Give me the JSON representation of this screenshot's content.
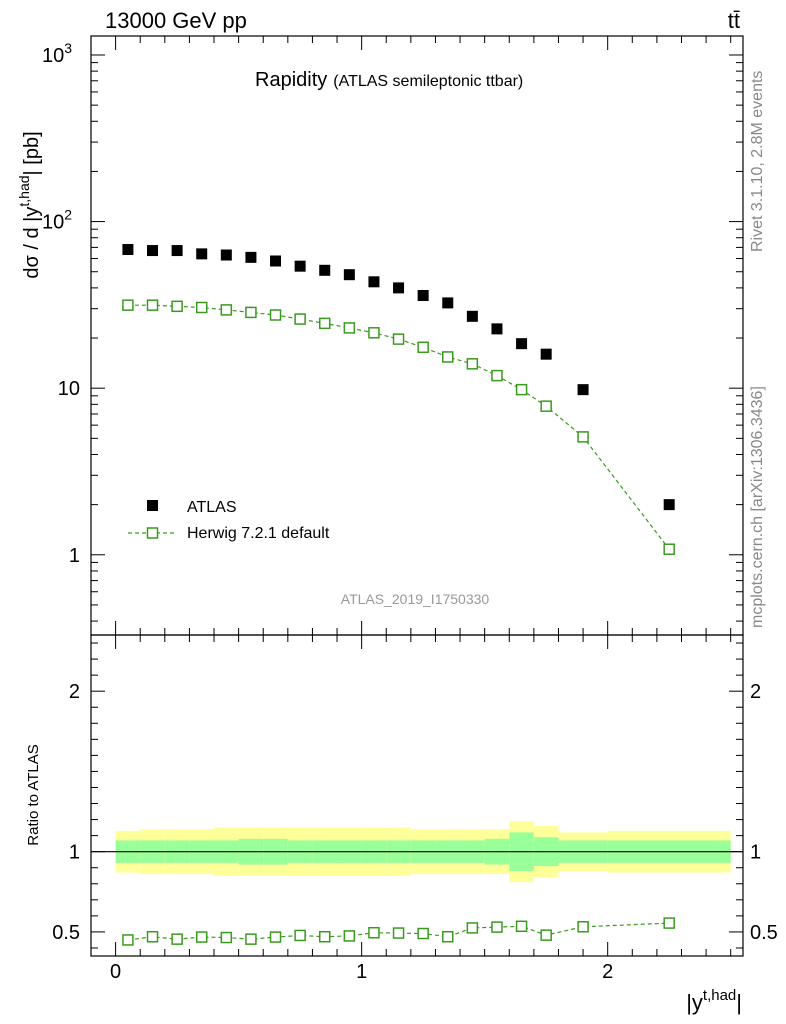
{
  "header": {
    "energy_label": "13000 GeV pp",
    "process_label": "tt̄"
  },
  "side_labels": {
    "rivet": "Rivet 3.1.10,  2.8M events",
    "mcplots": "mcplots.cern.ch [arXiv:1306.3436]"
  },
  "chart_data": [
    {
      "type": "scatter",
      "panel": "main",
      "title": "Rapidity",
      "subtitle": "(ATLAS semileptonic ttbar)",
      "analysis_id": "ATLAS_2019_I1750330",
      "ylabel": "dσ / d |y^{t,had}| [pb]",
      "ylabel_parts": {
        "prefix": "dσ / d |y",
        "sup": "t,had",
        "suffix": "| [pb]"
      },
      "yscale": "log",
      "xlim": [
        -0.1,
        2.55
      ],
      "ylim": [
        0.33,
        1300
      ],
      "ytick_labels": [
        {
          "value": 1,
          "label": "1"
        },
        {
          "value": 10,
          "label": "10"
        },
        {
          "value": 100,
          "base": "10",
          "exp": "2"
        },
        {
          "value": 1000,
          "base": "10",
          "exp": "3"
        }
      ],
      "legend_position": "bottom-left",
      "series": [
        {
          "name": "ATLAS",
          "marker": "filled-square",
          "color": "#000000",
          "x": [
            0.05,
            0.15,
            0.25,
            0.35,
            0.45,
            0.55,
            0.65,
            0.75,
            0.85,
            0.95,
            1.05,
            1.15,
            1.25,
            1.35,
            1.45,
            1.55,
            1.65,
            1.75,
            1.9,
            2.25
          ],
          "y": [
            68,
            67,
            67,
            64,
            63,
            61,
            58,
            54,
            51,
            48,
            43.5,
            40,
            36,
            32.5,
            27,
            22.7,
            18.5,
            16,
            9.8,
            2.0
          ]
        },
        {
          "name": "Herwig 7.2.1 default",
          "marker": "open-square",
          "line": "dashed",
          "color": "#3a9a1f",
          "x": [
            0.05,
            0.15,
            0.25,
            0.35,
            0.45,
            0.55,
            0.65,
            0.75,
            0.85,
            0.95,
            1.05,
            1.15,
            1.25,
            1.35,
            1.45,
            1.55,
            1.65,
            1.75,
            1.9,
            2.25
          ],
          "y": [
            31.5,
            31.5,
            31,
            30.5,
            29.5,
            28.5,
            27.5,
            26,
            24.5,
            23,
            21.5,
            19.7,
            17.6,
            15.4,
            14,
            11.9,
            9.8,
            7.8,
            5.1,
            1.08
          ]
        }
      ]
    },
    {
      "type": "scatter",
      "panel": "ratio",
      "ylabel": "Ratio to ATLAS",
      "xlabel": "|y^{t,had}|",
      "xlabel_parts": {
        "prefix": "|y",
        "sup": "t,had",
        "suffix": "|"
      },
      "xlim": [
        -0.1,
        2.55
      ],
      "ylim": [
        0.35,
        2.35
      ],
      "x_ticks": [
        0,
        1,
        2
      ],
      "x_tick_labels": [
        "0",
        "1",
        "2"
      ],
      "y_ticks": [
        0.5,
        1,
        2
      ],
      "y_tick_labels": [
        "0.5",
        "1",
        "2"
      ],
      "reference_line": 1.0,
      "bins": [
        {
          "lo": 0.0,
          "hi": 0.1,
          "stat": 0.07,
          "tot": 0.13
        },
        {
          "lo": 0.1,
          "hi": 0.2,
          "stat": 0.07,
          "tot": 0.14
        },
        {
          "lo": 0.2,
          "hi": 0.3,
          "stat": 0.07,
          "tot": 0.14
        },
        {
          "lo": 0.3,
          "hi": 0.4,
          "stat": 0.07,
          "tot": 0.14
        },
        {
          "lo": 0.4,
          "hi": 0.5,
          "stat": 0.07,
          "tot": 0.15
        },
        {
          "lo": 0.5,
          "hi": 0.6,
          "stat": 0.08,
          "tot": 0.15
        },
        {
          "lo": 0.6,
          "hi": 0.7,
          "stat": 0.08,
          "tot": 0.15
        },
        {
          "lo": 0.7,
          "hi": 0.8,
          "stat": 0.07,
          "tot": 0.15
        },
        {
          "lo": 0.8,
          "hi": 0.9,
          "stat": 0.07,
          "tot": 0.15
        },
        {
          "lo": 0.9,
          "hi": 1.0,
          "stat": 0.07,
          "tot": 0.15
        },
        {
          "lo": 1.0,
          "hi": 1.1,
          "stat": 0.07,
          "tot": 0.15
        },
        {
          "lo": 1.1,
          "hi": 1.2,
          "stat": 0.07,
          "tot": 0.15
        },
        {
          "lo": 1.2,
          "hi": 1.3,
          "stat": 0.07,
          "tot": 0.14
        },
        {
          "lo": 1.3,
          "hi": 1.4,
          "stat": 0.07,
          "tot": 0.14
        },
        {
          "lo": 1.4,
          "hi": 1.5,
          "stat": 0.07,
          "tot": 0.14
        },
        {
          "lo": 1.5,
          "hi": 1.6,
          "stat": 0.08,
          "tot": 0.14
        },
        {
          "lo": 1.6,
          "hi": 1.7,
          "stat": 0.12,
          "tot": 0.19
        },
        {
          "lo": 1.7,
          "hi": 1.8,
          "stat": 0.09,
          "tot": 0.16
        },
        {
          "lo": 1.8,
          "hi": 2.0,
          "stat": 0.07,
          "tot": 0.12
        },
        {
          "lo": 2.0,
          "hi": 2.5,
          "stat": 0.07,
          "tot": 0.13
        }
      ],
      "band_colors": {
        "total": "#ffff99",
        "stat": "#99ff99"
      },
      "series": [
        {
          "name": "Herwig 7.2.1 default / ATLAS",
          "marker": "open-square",
          "line": "dashed",
          "color": "#3a9a1f",
          "x": [
            0.05,
            0.15,
            0.25,
            0.35,
            0.45,
            0.55,
            0.65,
            0.75,
            0.85,
            0.95,
            1.05,
            1.15,
            1.25,
            1.35,
            1.45,
            1.55,
            1.65,
            1.75,
            1.9,
            2.25
          ],
          "y": [
            0.45,
            0.47,
            0.455,
            0.468,
            0.465,
            0.455,
            0.468,
            0.478,
            0.47,
            0.475,
            0.495,
            0.493,
            0.49,
            0.47,
            0.525,
            0.53,
            0.535,
            0.48,
            0.532,
            0.555
          ]
        }
      ]
    }
  ]
}
